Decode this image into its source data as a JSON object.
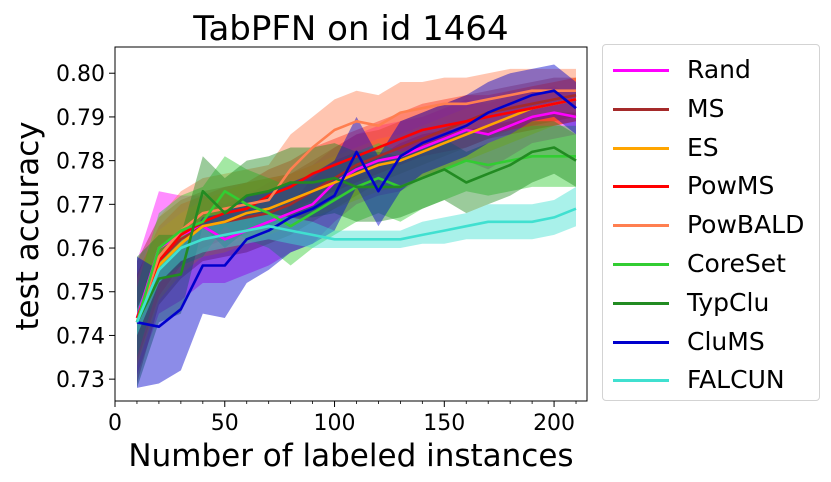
{
  "chart_data": {
    "type": "line",
    "title": "TabPFN on id 1464",
    "xlabel": "Number of labeled instances",
    "ylabel": "test accuracy",
    "xlim": [
      0,
      215
    ],
    "ylim": [
      0.725,
      0.806
    ],
    "xticks": [
      0,
      50,
      100,
      150,
      200
    ],
    "yticks": [
      0.73,
      0.74,
      0.75,
      0.76,
      0.77,
      0.78,
      0.79,
      0.8
    ],
    "grid": false,
    "legend_position": "outside-right",
    "x": [
      10,
      20,
      30,
      40,
      50,
      60,
      70,
      80,
      90,
      100,
      110,
      120,
      130,
      140,
      150,
      160,
      170,
      180,
      190,
      200,
      210
    ],
    "series": [
      {
        "name": "Rand",
        "color": "#ff00ff",
        "values": [
          0.744,
          0.76,
          0.763,
          0.765,
          0.762,
          0.764,
          0.766,
          0.768,
          0.77,
          0.775,
          0.778,
          0.78,
          0.781,
          0.783,
          0.785,
          0.787,
          0.786,
          0.788,
          0.79,
          0.791,
          0.79
        ],
        "lower": [
          0.731,
          0.745,
          0.748,
          0.752,
          0.752,
          0.754,
          0.756,
          0.759,
          0.761,
          0.766,
          0.77,
          0.772,
          0.773,
          0.776,
          0.778,
          0.78,
          0.778,
          0.781,
          0.784,
          0.785,
          0.786
        ],
        "upper": [
          0.757,
          0.773,
          0.772,
          0.772,
          0.77,
          0.772,
          0.775,
          0.777,
          0.779,
          0.783,
          0.786,
          0.788,
          0.789,
          0.79,
          0.792,
          0.794,
          0.793,
          0.795,
          0.796,
          0.797,
          0.795
        ]
      },
      {
        "name": "MS",
        "color": "#a52a2a",
        "values": [
          0.743,
          0.757,
          0.762,
          0.765,
          0.766,
          0.767,
          0.768,
          0.77,
          0.773,
          0.776,
          0.779,
          0.781,
          0.783,
          0.785,
          0.787,
          0.789,
          0.791,
          0.792,
          0.793,
          0.794,
          0.795
        ],
        "lower": [
          0.729,
          0.747,
          0.753,
          0.757,
          0.758,
          0.759,
          0.761,
          0.763,
          0.766,
          0.769,
          0.772,
          0.775,
          0.777,
          0.779,
          0.781,
          0.783,
          0.785,
          0.787,
          0.788,
          0.789,
          0.79
        ],
        "upper": [
          0.757,
          0.767,
          0.771,
          0.773,
          0.774,
          0.775,
          0.776,
          0.777,
          0.78,
          0.783,
          0.786,
          0.787,
          0.789,
          0.791,
          0.793,
          0.795,
          0.796,
          0.797,
          0.798,
          0.799,
          0.799
        ]
      },
      {
        "name": "ES",
        "color": "#ffa500",
        "values": [
          0.743,
          0.756,
          0.761,
          0.765,
          0.766,
          0.768,
          0.769,
          0.771,
          0.773,
          0.775,
          0.777,
          0.779,
          0.78,
          0.782,
          0.784,
          0.786,
          0.788,
          0.79,
          0.792,
          0.793,
          0.794
        ],
        "lower": [
          0.733,
          0.748,
          0.754,
          0.758,
          0.759,
          0.761,
          0.763,
          0.765,
          0.767,
          0.769,
          0.771,
          0.773,
          0.774,
          0.776,
          0.778,
          0.78,
          0.782,
          0.784,
          0.786,
          0.788,
          0.789
        ],
        "upper": [
          0.753,
          0.764,
          0.768,
          0.771,
          0.773,
          0.775,
          0.776,
          0.777,
          0.779,
          0.781,
          0.783,
          0.785,
          0.786,
          0.788,
          0.79,
          0.792,
          0.794,
          0.796,
          0.797,
          0.798,
          0.799
        ]
      },
      {
        "name": "PowMS",
        "color": "#ff0000",
        "values": [
          0.744,
          0.757,
          0.763,
          0.766,
          0.768,
          0.769,
          0.772,
          0.774,
          0.777,
          0.779,
          0.781,
          0.783,
          0.785,
          0.787,
          0.788,
          0.789,
          0.79,
          0.791,
          0.792,
          0.793,
          0.794
        ],
        "lower": [
          0.734,
          0.749,
          0.756,
          0.76,
          0.762,
          0.763,
          0.766,
          0.768,
          0.771,
          0.773,
          0.775,
          0.777,
          0.779,
          0.781,
          0.782,
          0.783,
          0.785,
          0.786,
          0.787,
          0.788,
          0.789
        ],
        "upper": [
          0.754,
          0.765,
          0.77,
          0.772,
          0.774,
          0.775,
          0.778,
          0.78,
          0.783,
          0.785,
          0.787,
          0.789,
          0.791,
          0.793,
          0.794,
          0.795,
          0.795,
          0.796,
          0.797,
          0.798,
          0.799
        ]
      },
      {
        "name": "PowBALD",
        "color": "#ff7f50",
        "values": [
          0.743,
          0.758,
          0.764,
          0.768,
          0.769,
          0.77,
          0.771,
          0.778,
          0.783,
          0.787,
          0.789,
          0.788,
          0.791,
          0.792,
          0.793,
          0.793,
          0.794,
          0.795,
          0.796,
          0.796,
          0.796
        ],
        "lower": [
          0.733,
          0.749,
          0.755,
          0.759,
          0.761,
          0.762,
          0.763,
          0.77,
          0.776,
          0.78,
          0.782,
          0.781,
          0.784,
          0.786,
          0.787,
          0.787,
          0.788,
          0.789,
          0.79,
          0.791,
          0.791
        ],
        "upper": [
          0.753,
          0.767,
          0.773,
          0.776,
          0.777,
          0.778,
          0.779,
          0.786,
          0.79,
          0.794,
          0.796,
          0.795,
          0.798,
          0.798,
          0.799,
          0.799,
          0.8,
          0.801,
          0.801,
          0.801,
          0.801
        ]
      },
      {
        "name": "CoreSet",
        "color": "#32cd32",
        "values": [
          0.743,
          0.76,
          0.764,
          0.766,
          0.773,
          0.77,
          0.768,
          0.765,
          0.768,
          0.771,
          0.774,
          0.776,
          0.774,
          0.776,
          0.778,
          0.78,
          0.779,
          0.78,
          0.781,
          0.781,
          0.781
        ],
        "lower": [
          0.735,
          0.752,
          0.756,
          0.758,
          0.765,
          0.762,
          0.76,
          0.756,
          0.76,
          0.763,
          0.766,
          0.768,
          0.766,
          0.769,
          0.771,
          0.773,
          0.772,
          0.773,
          0.774,
          0.774,
          0.774
        ],
        "upper": [
          0.751,
          0.768,
          0.772,
          0.774,
          0.781,
          0.778,
          0.776,
          0.774,
          0.776,
          0.779,
          0.782,
          0.784,
          0.782,
          0.783,
          0.785,
          0.787,
          0.786,
          0.787,
          0.788,
          0.788,
          0.788
        ]
      },
      {
        "name": "TypClu",
        "color": "#228b22",
        "values": [
          0.743,
          0.753,
          0.754,
          0.773,
          0.768,
          0.772,
          0.773,
          0.775,
          0.775,
          0.776,
          0.774,
          0.774,
          0.774,
          0.776,
          0.778,
          0.775,
          0.777,
          0.779,
          0.782,
          0.783,
          0.78
        ],
        "lower": [
          0.728,
          0.743,
          0.745,
          0.765,
          0.76,
          0.764,
          0.765,
          0.767,
          0.767,
          0.768,
          0.766,
          0.766,
          0.767,
          0.769,
          0.771,
          0.768,
          0.77,
          0.772,
          0.775,
          0.777,
          0.774
        ],
        "upper": [
          0.758,
          0.763,
          0.763,
          0.781,
          0.776,
          0.78,
          0.781,
          0.783,
          0.783,
          0.784,
          0.782,
          0.782,
          0.781,
          0.783,
          0.785,
          0.782,
          0.784,
          0.786,
          0.789,
          0.789,
          0.786
        ]
      },
      {
        "name": "CluMS",
        "color": "#0000cd",
        "values": [
          0.743,
          0.742,
          0.746,
          0.756,
          0.756,
          0.762,
          0.764,
          0.767,
          0.769,
          0.772,
          0.782,
          0.773,
          0.781,
          0.784,
          0.786,
          0.788,
          0.791,
          0.793,
          0.795,
          0.796,
          0.792
        ],
        "lower": [
          0.728,
          0.729,
          0.732,
          0.745,
          0.744,
          0.752,
          0.755,
          0.759,
          0.761,
          0.764,
          0.774,
          0.765,
          0.773,
          0.777,
          0.779,
          0.781,
          0.784,
          0.786,
          0.789,
          0.79,
          0.786
        ],
        "upper": [
          0.758,
          0.755,
          0.76,
          0.767,
          0.768,
          0.772,
          0.773,
          0.775,
          0.777,
          0.78,
          0.79,
          0.781,
          0.789,
          0.791,
          0.793,
          0.795,
          0.798,
          0.8,
          0.801,
          0.802,
          0.798
        ]
      },
      {
        "name": "FALCUN",
        "color": "#40e0d0",
        "values": [
          0.743,
          0.755,
          0.76,
          0.762,
          0.763,
          0.764,
          0.765,
          0.764,
          0.763,
          0.762,
          0.762,
          0.762,
          0.762,
          0.763,
          0.764,
          0.765,
          0.766,
          0.766,
          0.766,
          0.767,
          0.769
        ],
        "lower": [
          0.74,
          0.752,
          0.757,
          0.759,
          0.76,
          0.761,
          0.762,
          0.761,
          0.76,
          0.76,
          0.76,
          0.76,
          0.76,
          0.761,
          0.761,
          0.762,
          0.762,
          0.762,
          0.762,
          0.763,
          0.765
        ],
        "upper": [
          0.746,
          0.758,
          0.763,
          0.765,
          0.766,
          0.767,
          0.768,
          0.767,
          0.766,
          0.764,
          0.764,
          0.764,
          0.764,
          0.766,
          0.767,
          0.768,
          0.77,
          0.77,
          0.77,
          0.771,
          0.774
        ]
      }
    ]
  }
}
